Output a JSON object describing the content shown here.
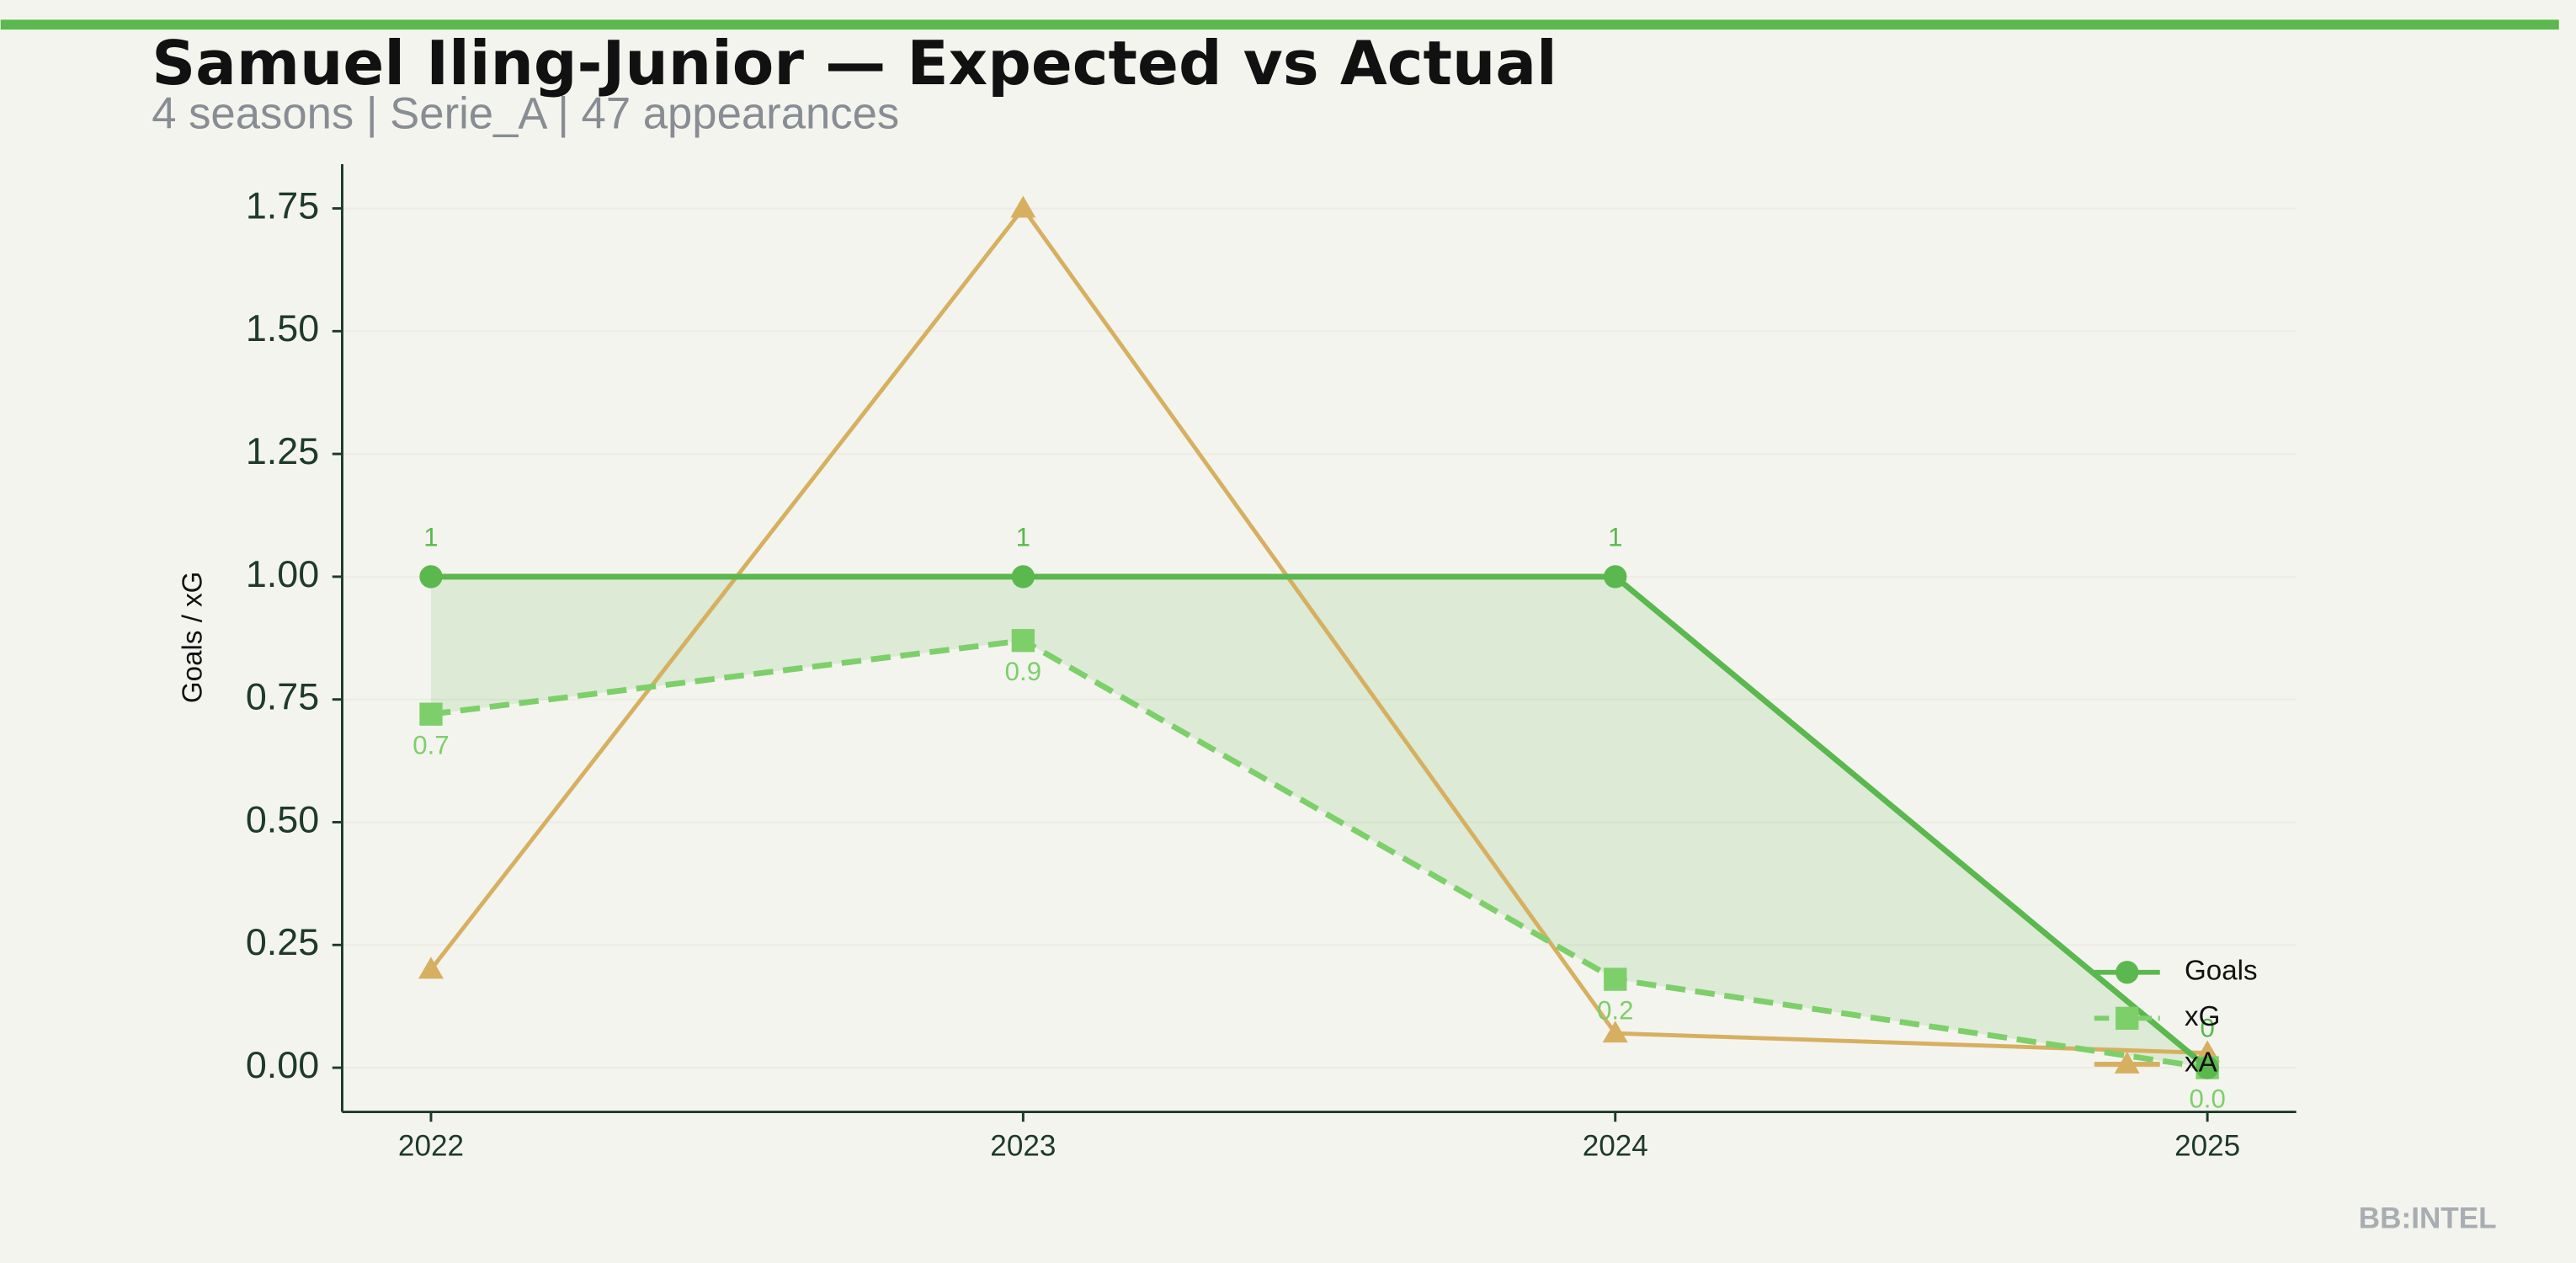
{
  "chart_data": {
    "type": "line",
    "title": "Samuel Iling-Junior — Expected vs Actual",
    "subtitle": "4 seasons | Serie_A | 47 appearances",
    "y_label": "Goals / xG",
    "footer": "BB:INTEL",
    "x": [
      2022,
      2023,
      2024,
      2025
    ],
    "xlim": [
      2021.85,
      2025.15
    ],
    "xticks": [
      2022,
      2023,
      2024,
      2025
    ],
    "ylim": [
      -0.09,
      1.84
    ],
    "yticks": [
      {
        "value": 0,
        "label": "0.00"
      },
      {
        "value": 0.25,
        "label": "0.25"
      },
      {
        "value": 0.5,
        "label": "0.50"
      },
      {
        "value": 0.75,
        "label": "0.75"
      },
      {
        "value": 1,
        "label": "1.00"
      },
      {
        "value": 1.25,
        "label": "1.25"
      },
      {
        "value": 1.5,
        "label": "1.50"
      },
      {
        "value": 1.75,
        "label": "1.75"
      }
    ],
    "grid": true,
    "legend": "lower right",
    "series": [
      {
        "name": "Goals",
        "color": "#5ab84e",
        "marker": "circle",
        "dash": false,
        "values": [
          1,
          1,
          1,
          0
        ],
        "value_labels": [
          "1",
          "1",
          "1",
          "0"
        ],
        "label_side": "above"
      },
      {
        "name": "xG",
        "color": "#7dcf6a",
        "marker": "square",
        "dash": true,
        "values": [
          0.72,
          0.87,
          0.18,
          0.0
        ],
        "value_labels": [
          "0.7",
          "0.9",
          "0.2",
          "0.0"
        ],
        "label_side": "below"
      },
      {
        "name": "xA",
        "color": "#d6b060",
        "marker": "triangle",
        "dash": false,
        "values": [
          0.2,
          1.75,
          0.07,
          0.03
        ]
      }
    ]
  }
}
